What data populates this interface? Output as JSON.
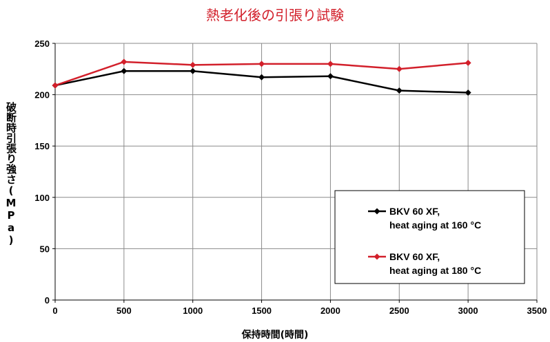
{
  "chart_data": {
    "type": "line",
    "title": "熱老化後の引張り試験",
    "xlabel": "保持時間(時間)",
    "ylabel": "破断時引張り強さ(MPa)",
    "xlim": [
      0,
      3500
    ],
    "ylim": [
      0,
      250
    ],
    "x_ticks": [
      0,
      500,
      1000,
      1500,
      2000,
      2500,
      3000,
      3500
    ],
    "y_ticks": [
      0,
      50,
      100,
      150,
      200,
      250
    ],
    "grid": true,
    "legend_position": "right",
    "series": [
      {
        "name_lines": [
          "BKV 60 XF,",
          "heat aging at 160 °C"
        ],
        "color": "#000000",
        "x": [
          0,
          500,
          1000,
          1500,
          2000,
          2500,
          3000
        ],
        "y": [
          209,
          223,
          223,
          217,
          218,
          204,
          202
        ]
      },
      {
        "name_lines": [
          "BKV 60 XF,",
          "heat aging at 180 °C"
        ],
        "color": "#d21f2a",
        "x": [
          0,
          500,
          1000,
          1500,
          2000,
          2500,
          3000
        ],
        "y": [
          209,
          232,
          229,
          230,
          230,
          225,
          231
        ]
      }
    ]
  }
}
